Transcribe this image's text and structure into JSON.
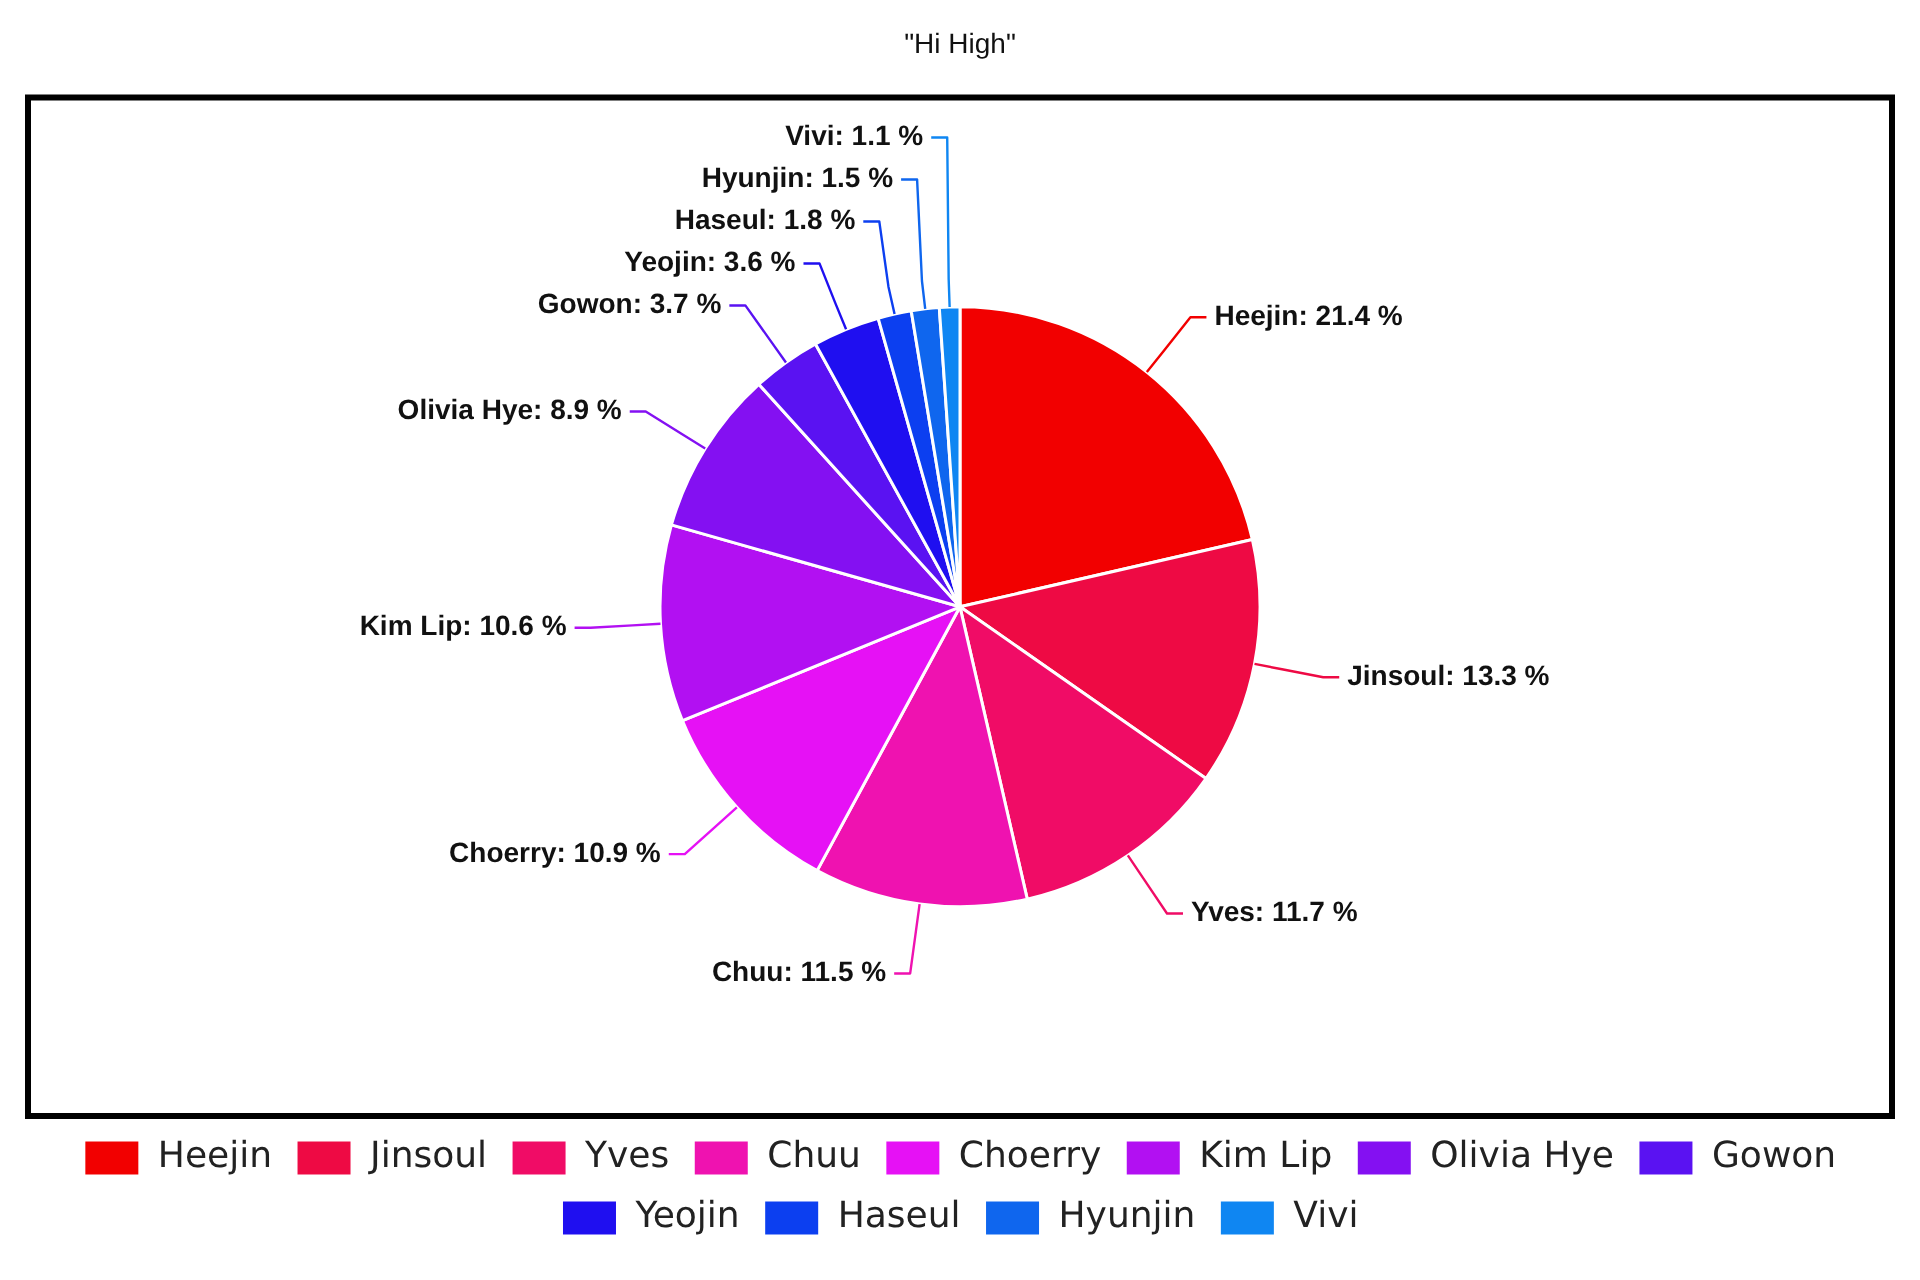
{
  "chart_data": {
    "type": "pie",
    "title": "\"Hi High\"",
    "categories": [
      "Heejin",
      "Jinsoul",
      "Yves",
      "Chuu",
      "Choerry",
      "Kim Lip",
      "Olivia Hye",
      "Gowon",
      "Yeojin",
      "Haseul",
      "Hyunjin",
      "Vivi"
    ],
    "values": [
      21.4,
      13.3,
      11.7,
      11.5,
      10.9,
      10.6,
      8.9,
      3.7,
      3.6,
      1.8,
      1.5,
      1.1
    ],
    "colors": [
      "#f20000",
      "#ee0a44",
      "#f00c66",
      "#ef12b0",
      "#e611f5",
      "#b210f2",
      "#8410f2",
      "#5a12f2",
      "#1f0ff0",
      "#0c3ff0",
      "#0f66ee",
      "#0f86f2"
    ],
    "value_labels": [
      "Heejin: 21.4 %",
      "Jinsoul: 13.3 %",
      "Yves: 11.7 %",
      "Chuu: 11.5 %",
      "Choerry: 10.9 %",
      "Kim Lip: 10.6 %",
      "Olivia Hye: 8.9 %",
      "Gowon: 3.7 %",
      "Yeojin: 3.6 %",
      "Haseul: 1.8 %",
      "Hyunjin: 1.5 %",
      "Vivi: 1.1 %"
    ],
    "legend": "bottom"
  }
}
